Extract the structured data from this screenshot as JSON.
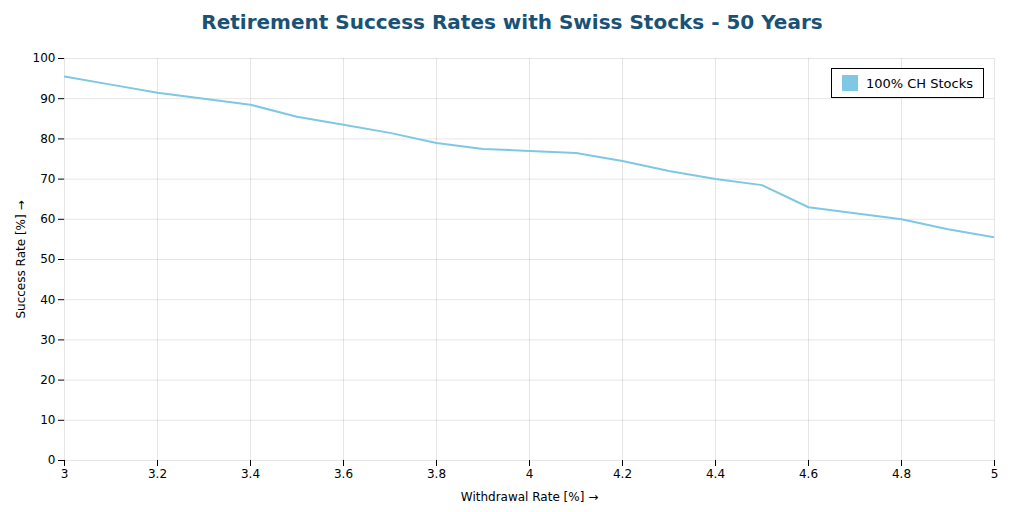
{
  "chart_data": {
    "type": "line",
    "title": "Retirement Success Rates with Swiss Stocks - 50 Years",
    "xlabel": "Withdrawal Rate [%]",
    "ylabel": "Success Rate [%]",
    "x": [
      3.0,
      3.1,
      3.2,
      3.3,
      3.4,
      3.5,
      3.6,
      3.7,
      3.8,
      3.9,
      4.0,
      4.1,
      4.2,
      4.3,
      4.4,
      4.5,
      4.6,
      4.7,
      4.8,
      4.9,
      5.0
    ],
    "series": [
      {
        "name": "100% CH Stocks",
        "color": "#7ec8e3",
        "values": [
          95.5,
          93.5,
          91.5,
          90.0,
          88.5,
          85.5,
          83.5,
          81.5,
          79.0,
          77.5,
          77.0,
          76.5,
          74.5,
          72.0,
          70.0,
          68.5,
          63.0,
          61.5,
          60.0,
          57.5,
          55.5
        ]
      }
    ],
    "xlim": [
      3,
      5
    ],
    "xticks": [
      3,
      3.2,
      3.4,
      3.6,
      3.8,
      4,
      4.2,
      4.4,
      4.6,
      4.8,
      5
    ],
    "ylim": [
      0,
      100
    ],
    "yticks": [
      0,
      10,
      20,
      30,
      40,
      50,
      60,
      70,
      80,
      90,
      100
    ],
    "grid": true,
    "legend": "upper right"
  }
}
